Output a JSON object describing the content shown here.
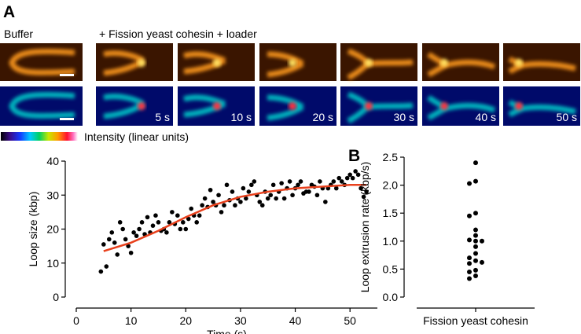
{
  "figure": {
    "panel_a": "A",
    "panel_b": "B",
    "buffer": "Buffer",
    "condition": "+ Fission yeast cohesin + loader",
    "timestamps": [
      "5 s",
      "10 s",
      "20 s",
      "30 s",
      "40 s",
      "50 s"
    ],
    "colorbar_label": "Intensity (linear units)"
  },
  "chart_data": [
    {
      "type": "scatter",
      "xlabel": "Time (s)",
      "ylabel": "Loop size (kbp)",
      "xlim": [
        0,
        55
      ],
      "xticks": [
        0,
        10,
        20,
        30,
        40,
        50
      ],
      "ylim": [
        0,
        40
      ],
      "yticks": [
        0,
        10,
        20,
        30,
        40
      ],
      "series": [
        {
          "mode": "markers",
          "color": "#000000",
          "x": [
            4.5,
            5,
            5.5,
            6,
            6.5,
            7,
            7.5,
            8,
            8.5,
            9,
            9.5,
            10,
            10.5,
            11,
            11.5,
            12,
            12.5,
            13,
            13.5,
            14,
            14.5,
            15,
            15.5,
            16,
            16.5,
            17,
            17.5,
            18,
            18.5,
            19,
            19.5,
            20,
            20.5,
            21,
            21.5,
            22,
            22.5,
            23,
            23.5,
            24,
            24.5,
            25,
            25.5,
            26,
            26.5,
            27,
            27.5,
            28,
            28.5,
            29,
            29.5,
            30,
            30.5,
            31,
            31.5,
            32,
            32.5,
            33,
            33.5,
            34,
            34.5,
            35,
            35.5,
            36,
            36.5,
            37,
            37.5,
            38,
            38.5,
            39,
            39.5,
            40,
            40.5,
            41,
            41.5,
            42,
            42.5,
            43,
            43.5,
            44,
            44.5,
            45,
            45.5,
            46,
            46.5,
            47,
            47.5,
            48,
            48.5,
            49,
            49.5,
            50,
            50.5,
            51,
            51.5,
            52,
            52.5,
            53
          ],
          "values": [
            7.5,
            15.5,
            9,
            17,
            19,
            16,
            12.5,
            22,
            20,
            17,
            15,
            13,
            19,
            18,
            20,
            22,
            18.5,
            23.5,
            19,
            21,
            24,
            22,
            19.5,
            20,
            19,
            22,
            25,
            21.5,
            24,
            20,
            22,
            20,
            23,
            26,
            24,
            22,
            24,
            27,
            29,
            26.5,
            31.5,
            28,
            27,
            30,
            25,
            27,
            33,
            28.5,
            31,
            27,
            29,
            28,
            32,
            29,
            31,
            33,
            34,
            30,
            28,
            27,
            31,
            29,
            30,
            33,
            29,
            31,
            33.5,
            29,
            32,
            34,
            30,
            32,
            33,
            34,
            30.5,
            31,
            31,
            33,
            32.5,
            30,
            34,
            32,
            28,
            32,
            33,
            34,
            32,
            35,
            34,
            33,
            35,
            36,
            35,
            37,
            36,
            32,
            29.5,
            31
          ]
        },
        {
          "mode": "line",
          "color": "#e8401c",
          "x": [
            5,
            10,
            15,
            20,
            25,
            30,
            35,
            40,
            45,
            50,
            53
          ],
          "values": [
            13.5,
            16,
            19.5,
            23.5,
            27,
            29.5,
            31,
            32,
            32.5,
            33,
            33
          ]
        }
      ]
    },
    {
      "type": "strip",
      "ylabel": "Loop extrusion rate (kbp/s)",
      "categories": [
        "Fission yeast cohesin"
      ],
      "ylim": [
        0,
        2.5
      ],
      "yticks": [
        {
          "value": 0,
          "label": "0.0"
        },
        0.5,
        {
          "value": 1,
          "label": "1.0"
        },
        1.5,
        {
          "value": 2,
          "label": "2.0"
        },
        2.5
      ],
      "color": "#000000",
      "values": [
        2.4,
        2.07,
        2.03,
        1.5,
        1.45,
        1.2,
        1.1,
        1.02,
        1.0,
        1.0,
        0.9,
        0.78,
        0.7,
        0.65,
        0.62,
        0.6,
        0.48,
        0.45,
        0.38,
        0.33
      ]
    }
  ]
}
